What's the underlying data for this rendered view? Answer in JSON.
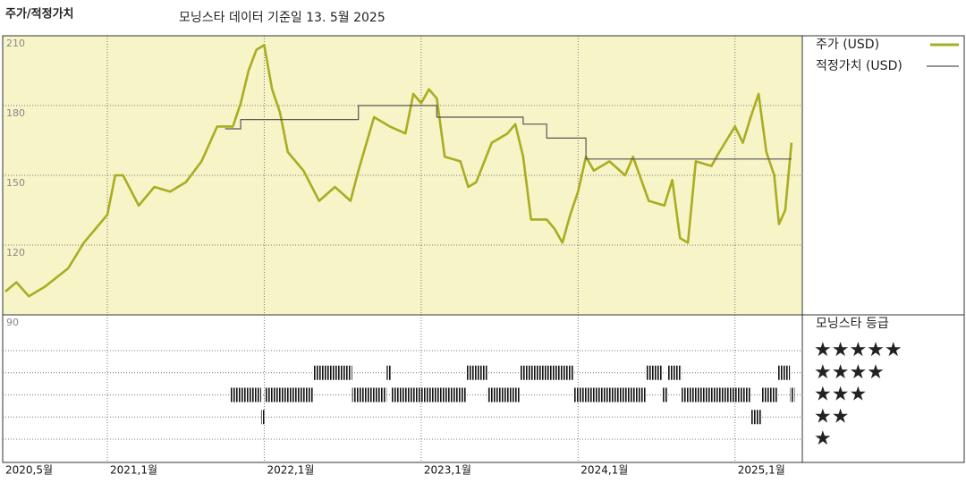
{
  "chart_data": {
    "type": "line",
    "title": "주가/적정가치",
    "subtitle": "모닝스타 데이터 기준일 13. 5월 2025",
    "xlim": [
      2020.333,
      2025.429
    ],
    "xticks": [
      {
        "value": 2020.333,
        "label": "2020,5월"
      },
      {
        "value": 2021,
        "label": "2021,1월"
      },
      {
        "value": 2022,
        "label": "2022,1월"
      },
      {
        "value": 2023,
        "label": "2023,1월"
      },
      {
        "value": 2024,
        "label": "2024,1월"
      },
      {
        "value": 2025,
        "label": "2025,1월"
      }
    ],
    "ylim": [
      90,
      210
    ],
    "yticks": [
      90,
      120,
      150,
      180,
      210
    ],
    "grid": true,
    "background": "#f7f4c8",
    "series": [
      {
        "name": "주가 (USD)",
        "color": "#a9ad22",
        "x": [
          2020.35,
          2020.42,
          2020.5,
          2020.6,
          2020.75,
          2020.85,
          2020.95,
          2021.0,
          2021.05,
          2021.1,
          2021.2,
          2021.3,
          2021.4,
          2021.5,
          2021.6,
          2021.7,
          2021.8,
          2021.85,
          2021.9,
          2021.95,
          2022.0,
          2022.05,
          2022.1,
          2022.15,
          2022.25,
          2022.35,
          2022.45,
          2022.55,
          2022.6,
          2022.7,
          2022.8,
          2022.9,
          2022.95,
          2023.0,
          2023.05,
          2023.1,
          2023.15,
          2023.25,
          2023.3,
          2023.35,
          2023.45,
          2023.55,
          2023.6,
          2023.65,
          2023.7,
          2023.8,
          2023.85,
          2023.9,
          2023.95,
          2024.0,
          2024.05,
          2024.1,
          2024.2,
          2024.3,
          2024.35,
          2024.45,
          2024.55,
          2024.6,
          2024.65,
          2024.7,
          2024.75,
          2024.85,
          2024.9,
          2025.0,
          2025.05,
          2025.1,
          2025.15,
          2025.2,
          2025.25,
          2025.28,
          2025.32,
          2025.36
        ],
        "values": [
          100,
          104,
          98,
          102,
          110,
          121,
          129,
          133,
          150,
          150,
          137,
          145,
          143,
          147,
          156,
          171,
          171,
          181,
          195,
          204,
          206,
          187,
          177,
          160,
          152,
          139,
          145,
          139,
          152,
          175,
          171,
          168,
          185,
          181,
          187,
          183,
          158,
          156,
          145,
          147,
          164,
          168,
          172,
          158,
          131,
          131,
          127,
          121,
          133,
          143,
          158,
          152,
          156,
          150,
          158,
          139,
          137,
          148,
          123,
          121,
          156,
          154,
          160,
          171,
          164,
          175,
          185,
          160,
          150,
          129,
          135,
          164
        ]
      },
      {
        "name": "적정가치 (USD)",
        "color": "#555555",
        "step": "after",
        "x": [
          2021.75,
          2021.85,
          2022.6,
          2023.1,
          2023.65,
          2023.8,
          2024.05,
          2025.36
        ],
        "values": [
          170,
          174,
          180,
          175,
          172,
          166,
          157,
          157
        ]
      }
    ],
    "rating_title": "모닝스타 등급",
    "rating_color": "#111111",
    "star_ticks": [
      {
        "value": 5,
        "label": "★★★★★"
      },
      {
        "value": 4,
        "label": "★★★★"
      },
      {
        "value": 3,
        "label": "★★★"
      },
      {
        "value": 2,
        "label": "★★"
      },
      {
        "value": 1,
        "label": "★"
      }
    ],
    "rating_periods": [
      {
        "start": 2021.78,
        "end": 2021.98,
        "stars": 3
      },
      {
        "start": 2021.98,
        "end": 2022.0,
        "stars": 2
      },
      {
        "start": 2022.0,
        "end": 2022.31,
        "stars": 3
      },
      {
        "start": 2022.31,
        "end": 2022.56,
        "stars": 4
      },
      {
        "start": 2022.56,
        "end": 2022.78,
        "stars": 3
      },
      {
        "start": 2022.78,
        "end": 2022.81,
        "stars": 4
      },
      {
        "start": 2022.81,
        "end": 2023.29,
        "stars": 3
      },
      {
        "start": 2023.29,
        "end": 2023.42,
        "stars": 4
      },
      {
        "start": 2023.42,
        "end": 2023.63,
        "stars": 3
      },
      {
        "start": 2023.63,
        "end": 2023.97,
        "stars": 4
      },
      {
        "start": 2023.97,
        "end": 2024.43,
        "stars": 3
      },
      {
        "start": 2024.43,
        "end": 2024.54,
        "stars": 4
      },
      {
        "start": 2024.54,
        "end": 2024.57,
        "stars": 3
      },
      {
        "start": 2024.57,
        "end": 2024.66,
        "stars": 4
      },
      {
        "start": 2024.66,
        "end": 2025.1,
        "stars": 3
      },
      {
        "start": 2025.1,
        "end": 2025.17,
        "stars": 2
      },
      {
        "start": 2025.17,
        "end": 2025.27,
        "stars": 3
      },
      {
        "start": 2025.27,
        "end": 2025.35,
        "stars": 4
      },
      {
        "start": 2025.35,
        "end": 2025.38,
        "stars": 3
      }
    ]
  }
}
